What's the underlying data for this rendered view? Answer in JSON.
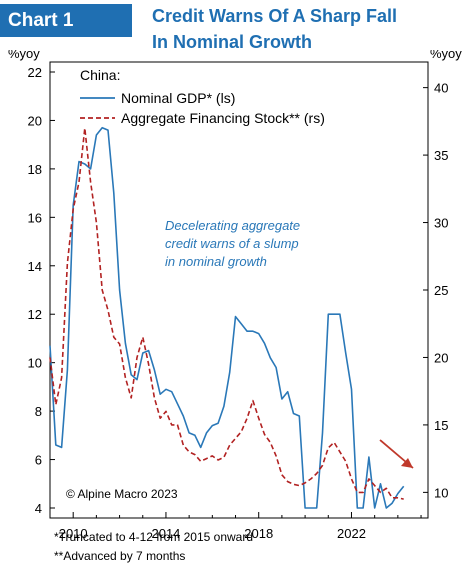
{
  "header": {
    "badge": "Chart 1",
    "title_lines": [
      "Credit Warns Of A Sharp Fall",
      "In Nominal Growth"
    ]
  },
  "colors": {
    "brand": "#1f6fb2",
    "gdp_line": "#2a78b8",
    "credit_line": "#b22222",
    "arrow": "#c0392b",
    "annotation": "#2a78b8"
  },
  "chart_data": {
    "type": "line",
    "country_label": "China:",
    "left_axis": {
      "label": "%yoy",
      "min": 4,
      "max": 22,
      "ticks": [
        4,
        6,
        8,
        10,
        12,
        14,
        16,
        18,
        20,
        22
      ]
    },
    "right_axis": {
      "label": "%yoy",
      "min": 8.1,
      "max": 41.9,
      "ticks": [
        10,
        15,
        20,
        25,
        30,
        35,
        40
      ]
    },
    "x_axis": {
      "min": 2009,
      "max": 2025.3,
      "ticks": [
        2010,
        2014,
        2018,
        2022
      ]
    },
    "grid": false,
    "legend_position": "top-left",
    "series": [
      {
        "name": "Nominal GDP* (ls)",
        "axis": "left",
        "style": "solid",
        "x": [
          2009.0,
          2009.25,
          2009.5,
          2009.75,
          2010.0,
          2010.25,
          2010.5,
          2010.75,
          2011.0,
          2011.25,
          2011.5,
          2011.75,
          2012.0,
          2012.25,
          2012.5,
          2012.75,
          2013.0,
          2013.25,
          2013.5,
          2013.75,
          2014.0,
          2014.25,
          2014.5,
          2014.75,
          2015.0,
          2015.25,
          2015.5,
          2015.75,
          2016.0,
          2016.25,
          2016.5,
          2016.75,
          2017.0,
          2017.25,
          2017.5,
          2017.75,
          2018.0,
          2018.25,
          2018.5,
          2018.75,
          2019.0,
          2019.25,
          2019.5,
          2019.75,
          2020.0,
          2020.25,
          2020.5,
          2020.75,
          2021.0,
          2021.25,
          2021.5,
          2021.75,
          2022.0,
          2022.25,
          2022.5,
          2022.75,
          2023.0,
          2023.25,
          2023.5,
          2023.75,
          2024.0,
          2024.25
        ],
        "values": [
          10.7,
          6.6,
          6.5,
          9.7,
          16.5,
          18.3,
          18.2,
          18.0,
          19.4,
          19.7,
          19.6,
          17.0,
          13.0,
          10.8,
          9.5,
          9.3,
          10.4,
          10.5,
          9.7,
          8.7,
          8.9,
          8.8,
          8.3,
          7.8,
          7.1,
          7.0,
          6.5,
          7.1,
          7.4,
          7.5,
          8.2,
          9.6,
          11.9,
          11.6,
          11.3,
          11.3,
          11.2,
          10.8,
          10.2,
          9.8,
          8.5,
          8.8,
          7.9,
          7.8,
          4.0,
          4.0,
          4.0,
          7.1,
          12.0,
          12.0,
          12.0,
          10.4,
          8.9,
          4.0,
          4.0,
          6.1,
          4.0,
          5.0,
          4.0,
          4.2,
          4.6,
          4.9
        ]
      },
      {
        "name": "Aggregate Financing Stock** (rs)",
        "axis": "right",
        "style": "dashed",
        "x": [
          2009.0,
          2009.25,
          2009.5,
          2009.75,
          2010.0,
          2010.25,
          2010.5,
          2010.75,
          2011.0,
          2011.25,
          2011.5,
          2011.75,
          2012.0,
          2012.25,
          2012.5,
          2012.75,
          2013.0,
          2013.25,
          2013.5,
          2013.75,
          2014.0,
          2014.25,
          2014.5,
          2014.75,
          2015.0,
          2015.25,
          2015.5,
          2015.75,
          2016.0,
          2016.25,
          2016.5,
          2016.75,
          2017.0,
          2017.25,
          2017.5,
          2017.75,
          2018.0,
          2018.25,
          2018.5,
          2018.75,
          2019.0,
          2019.25,
          2019.5,
          2019.75,
          2020.0,
          2020.25,
          2020.5,
          2020.75,
          2021.0,
          2021.25,
          2021.5,
          2021.75,
          2022.0,
          2022.25,
          2022.5,
          2022.75,
          2023.0,
          2023.25,
          2023.5,
          2023.75,
          2024.0,
          2024.25
        ],
        "values": [
          20.0,
          16.5,
          18.5,
          27.0,
          31.0,
          33.0,
          37.0,
          33.0,
          30.0,
          25.0,
          23.5,
          21.5,
          21.0,
          18.5,
          17.0,
          20.0,
          21.5,
          19.5,
          17.0,
          15.5,
          16.0,
          15.0,
          15.0,
          13.5,
          13.0,
          12.8,
          12.3,
          12.5,
          12.7,
          12.4,
          12.6,
          13.5,
          14.0,
          14.5,
          15.5,
          16.8,
          15.5,
          14.3,
          13.7,
          12.7,
          11.3,
          10.8,
          10.6,
          10.5,
          10.7,
          11.0,
          11.4,
          12.0,
          13.3,
          13.7,
          13.0,
          12.3,
          11.0,
          10.0,
          10.0,
          11.0,
          10.5,
          10.0,
          10.3,
          9.6,
          9.6,
          9.5
        ]
      }
    ],
    "annotation": [
      "Decelerating aggregate",
      "credit warns of a slump",
      "in nominal growth"
    ],
    "credit": "© Alpine Macro 2023"
  },
  "footnotes": [
    "*Truncated to 4-12 from 2015 onward",
    "**Advanced by 7 months"
  ]
}
